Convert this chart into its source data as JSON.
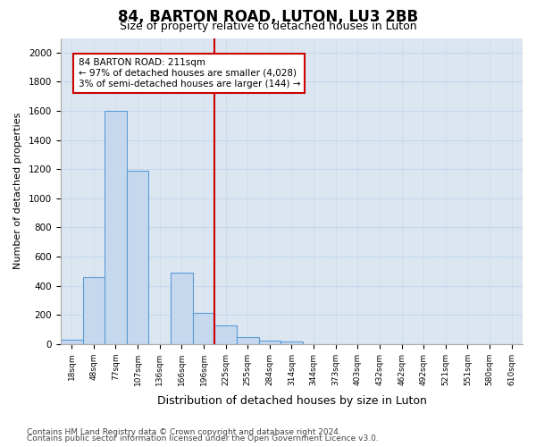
{
  "title": "84, BARTON ROAD, LUTON, LU3 2BB",
  "subtitle": "Size of property relative to detached houses in Luton",
  "xlabel": "Distribution of detached houses by size in Luton",
  "ylabel": "Number of detached properties",
  "bar_labels": [
    "18sqm",
    "48sqm",
    "77sqm",
    "107sqm",
    "136sqm",
    "166sqm",
    "196sqm",
    "225sqm",
    "255sqm",
    "284sqm",
    "314sqm",
    "344sqm",
    "373sqm",
    "403sqm",
    "432sqm",
    "462sqm",
    "492sqm",
    "521sqm",
    "551sqm",
    "580sqm",
    "610sqm"
  ],
  "bar_values": [
    30,
    460,
    1600,
    1190,
    0,
    490,
    215,
    125,
    45,
    25,
    15,
    0,
    0,
    0,
    0,
    0,
    0,
    0,
    0,
    0,
    0
  ],
  "bar_color": "#c5d8ee",
  "bar_edge_color": "#5b9bd5",
  "vline_x": 6.5,
  "vline_color": "#cc0000",
  "annotation_text": "84 BARTON ROAD: 211sqm\n← 97% of detached houses are smaller (4,028)\n3% of semi-detached houses are larger (144) →",
  "annotation_box_color": "#cc0000",
  "annotation_fill": "#ffffff",
  "ylim": [
    0,
    2100
  ],
  "yticks": [
    0,
    200,
    400,
    600,
    800,
    1000,
    1200,
    1400,
    1600,
    1800,
    2000
  ],
  "grid_color": "#c5d8ee",
  "bg_color": "#dce6f1",
  "footer_line1": "Contains HM Land Registry data © Crown copyright and database right 2024.",
  "footer_line2": "Contains public sector information licensed under the Open Government Licence v3.0.",
  "title_fontsize": 12,
  "subtitle_fontsize": 9,
  "footer_fontsize": 6.5
}
